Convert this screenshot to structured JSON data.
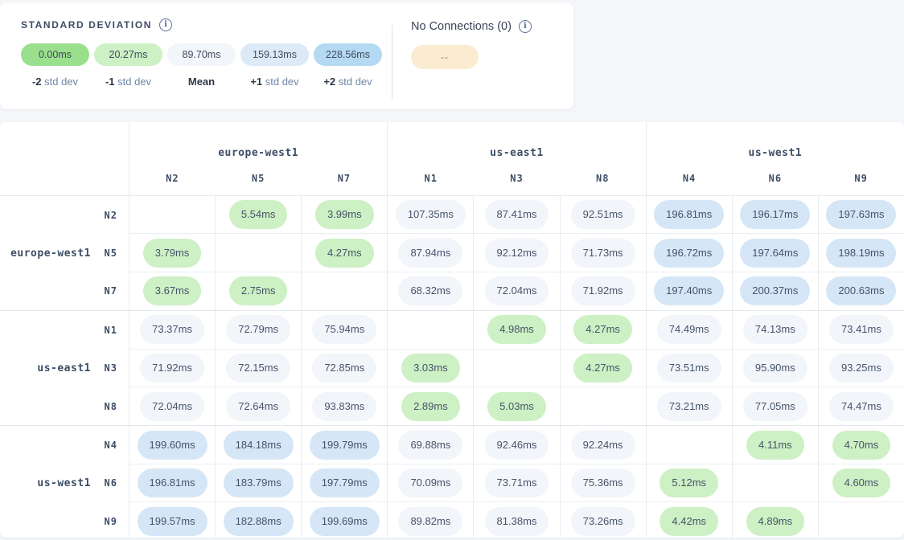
{
  "page_bg": "#f4f6f9",
  "legend": {
    "std_dev": {
      "title": "STANDARD DEVIATION",
      "info_icon": "info-icon",
      "items": [
        {
          "value": "0.00ms",
          "label_num": "-2",
          "label_text": "std dev",
          "color": "#9ae08c"
        },
        {
          "value": "20.27ms",
          "label_num": "-1",
          "label_text": "std dev",
          "color": "#cdf0c4"
        },
        {
          "value": "89.70ms",
          "label_num": "Mean",
          "label_text": "",
          "color": "#f2f5fa"
        },
        {
          "value": "159.13ms",
          "label_num": "+1",
          "label_text": "std dev",
          "color": "#dce9f7"
        },
        {
          "value": "228.56ms",
          "label_num": "+2",
          "label_text": "std dev",
          "color": "#b4d9f2"
        }
      ]
    },
    "no_connections": {
      "title": "No Connections (0)",
      "info_icon": "info-icon",
      "pill_label": "--",
      "pill_color": "#fbecd1"
    }
  },
  "matrix": {
    "cell_colors": {
      "low": "#cdf0c4",
      "mid": "#f2f5fa",
      "high": "#d5e6f6"
    },
    "tone_thresholds_ms": {
      "low_below": 30,
      "mid_below": 150
    },
    "column_groups": [
      {
        "region": "europe-west1",
        "nodes": [
          "N2",
          "N5",
          "N7"
        ]
      },
      {
        "region": "us-east1",
        "nodes": [
          "N1",
          "N3",
          "N8"
        ]
      },
      {
        "region": "us-west1",
        "nodes": [
          "N4",
          "N6",
          "N9"
        ]
      }
    ],
    "row_groups": [
      {
        "region": "europe-west1",
        "rows": [
          {
            "node": "N2",
            "cells": [
              null,
              "5.54ms",
              "3.99ms",
              "107.35ms",
              "87.41ms",
              "92.51ms",
              "196.81ms",
              "196.17ms",
              "197.63ms"
            ]
          },
          {
            "node": "N5",
            "cells": [
              "3.79ms",
              null,
              "4.27ms",
              "87.94ms",
              "92.12ms",
              "71.73ms",
              "196.72ms",
              "197.64ms",
              "198.19ms"
            ]
          },
          {
            "node": "N7",
            "cells": [
              "3.67ms",
              "2.75ms",
              null,
              "68.32ms",
              "72.04ms",
              "71.92ms",
              "197.40ms",
              "200.37ms",
              "200.63ms"
            ]
          }
        ]
      },
      {
        "region": "us-east1",
        "rows": [
          {
            "node": "N1",
            "cells": [
              "73.37ms",
              "72.79ms",
              "75.94ms",
              null,
              "4.98ms",
              "4.27ms",
              "74.49ms",
              "74.13ms",
              "73.41ms"
            ]
          },
          {
            "node": "N3",
            "cells": [
              "71.92ms",
              "72.15ms",
              "72.85ms",
              "3.03ms",
              null,
              "4.27ms",
              "73.51ms",
              "95.90ms",
              "93.25ms"
            ]
          },
          {
            "node": "N8",
            "cells": [
              "72.04ms",
              "72.64ms",
              "93.83ms",
              "2.89ms",
              "5.03ms",
              null,
              "73.21ms",
              "77.05ms",
              "74.47ms"
            ]
          }
        ]
      },
      {
        "region": "us-west1",
        "rows": [
          {
            "node": "N4",
            "cells": [
              "199.60ms",
              "184.18ms",
              "199.79ms",
              "69.88ms",
              "92.46ms",
              "92.24ms",
              null,
              "4.11ms",
              "4.70ms"
            ]
          },
          {
            "node": "N6",
            "cells": [
              "196.81ms",
              "183.79ms",
              "197.79ms",
              "70.09ms",
              "73.71ms",
              "75.36ms",
              "5.12ms",
              null,
              "4.60ms"
            ]
          },
          {
            "node": "N9",
            "cells": [
              "199.57ms",
              "182.88ms",
              "199.69ms",
              "89.82ms",
              "81.38ms",
              "73.26ms",
              "4.42ms",
              "4.89ms",
              null
            ]
          }
        ]
      }
    ]
  }
}
